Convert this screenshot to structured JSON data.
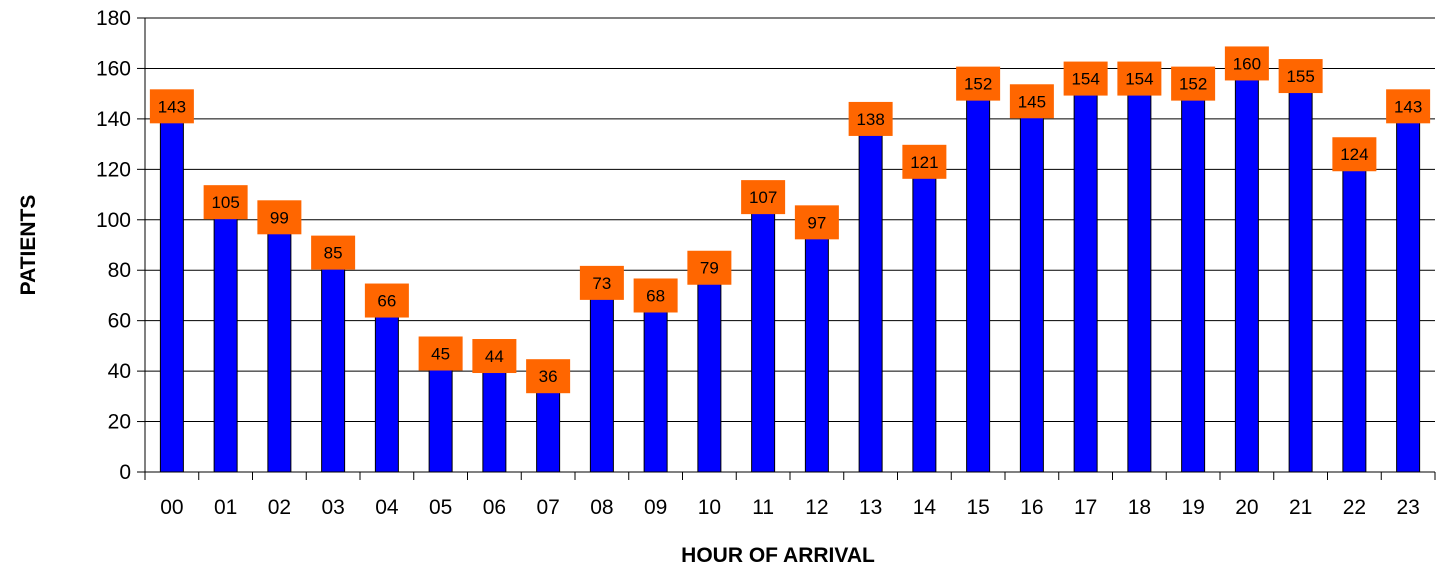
{
  "chart_data": {
    "type": "bar",
    "title": "",
    "xlabel": "HOUR OF ARRIVAL",
    "ylabel": "PATIENTS",
    "categories": [
      "00",
      "01",
      "02",
      "03",
      "04",
      "05",
      "06",
      "07",
      "08",
      "09",
      "10",
      "11",
      "12",
      "13",
      "14",
      "15",
      "16",
      "17",
      "18",
      "19",
      "20",
      "21",
      "22",
      "23"
    ],
    "values": [
      143,
      105,
      99,
      85,
      66,
      45,
      44,
      36,
      73,
      68,
      79,
      107,
      97,
      138,
      121,
      152,
      145,
      154,
      154,
      152,
      160,
      155,
      124,
      143
    ],
    "ylim": [
      0,
      180
    ],
    "yticks": [
      0,
      20,
      40,
      60,
      80,
      100,
      120,
      140,
      160,
      180
    ],
    "grid": true,
    "legend": "none",
    "colors": {
      "bar": "#0000ff",
      "bar_stroke": "#000000",
      "label_bg": "#ff6600",
      "grid": "#000000"
    }
  }
}
